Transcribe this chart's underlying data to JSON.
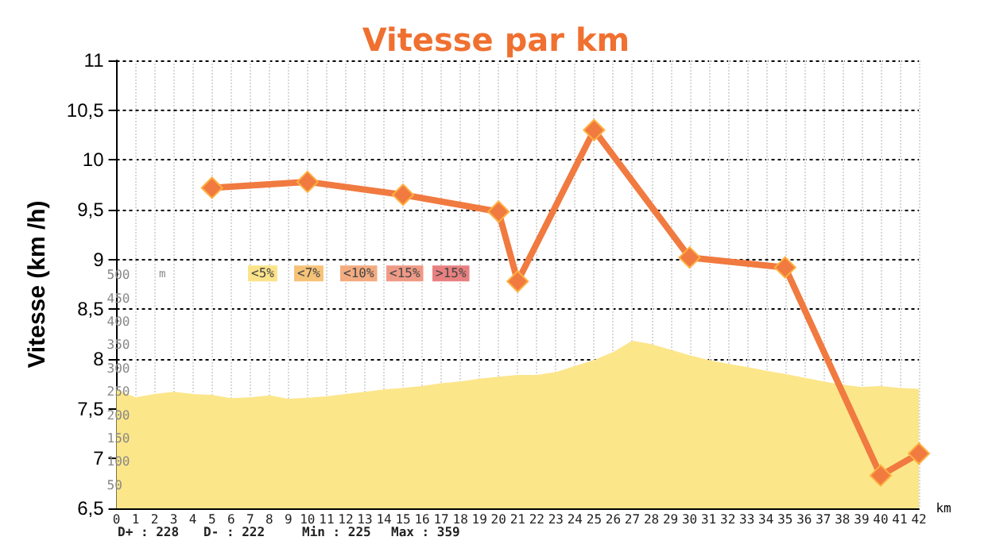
{
  "chart_data": {
    "type": "line",
    "title": "Vitesse par km",
    "xlabel": "km",
    "ylabel": "Vitesse (km /h)",
    "y2label": "m",
    "xlim": [
      0,
      42
    ],
    "xticks": [
      0,
      1,
      2,
      3,
      4,
      5,
      6,
      7,
      8,
      9,
      10,
      11,
      12,
      13,
      14,
      15,
      16,
      17,
      18,
      19,
      20,
      21,
      22,
      23,
      24,
      25,
      26,
      27,
      28,
      29,
      30,
      31,
      32,
      33,
      34,
      35,
      36,
      37,
      38,
      39,
      40,
      41,
      42
    ],
    "ylim": [
      6.5,
      11
    ],
    "yticks": [
      {
        "value": 6.5,
        "label": "6,5"
      },
      7,
      {
        "value": 7.5,
        "label": "7,5"
      },
      8,
      {
        "value": 8.5,
        "label": "8,5"
      },
      9,
      {
        "value": 9.5,
        "label": "9,5"
      },
      10,
      {
        "value": 10.5,
        "label": "10,5"
      },
      11
    ],
    "y2lim": [
      0,
      960
    ],
    "y2ticks": [
      50,
      100,
      150,
      200,
      250,
      300,
      350,
      400,
      450,
      500
    ],
    "grid": true,
    "marker": "diamond",
    "line_style": "solid",
    "series": [
      {
        "type": "area",
        "axis": "y2",
        "marker": "none",
        "color": "#fce68a",
        "x": [
          0,
          1,
          2,
          3,
          4,
          5,
          6,
          7,
          8,
          9,
          10,
          11,
          12,
          13,
          14,
          15,
          16,
          17,
          18,
          19,
          20,
          21,
          22,
          23,
          24,
          25,
          26,
          27,
          28,
          29,
          30,
          31,
          32,
          33,
          34,
          35,
          36,
          37,
          38,
          39,
          40,
          41,
          42
        ],
        "values": [
          255,
          238,
          245,
          250,
          245,
          243,
          236,
          238,
          242,
          235,
          237,
          240,
          245,
          250,
          255,
          258,
          262,
          268,
          272,
          278,
          282,
          286,
          286,
          292,
          305,
          318,
          335,
          359,
          352,
          340,
          328,
          318,
          310,
          303,
          295,
          288,
          280,
          272,
          265,
          260,
          262,
          258,
          256
        ]
      },
      {
        "color": "#f07a40",
        "x": [
          5,
          10,
          15,
          20,
          21,
          25,
          30,
          35,
          40,
          42
        ],
        "values": [
          9.72,
          9.78,
          9.65,
          9.48,
          8.78,
          10.3,
          9.02,
          8.92,
          6.83,
          7.05
        ]
      }
    ],
    "annotations": [
      "<5%",
      "<7%",
      "<10%",
      "<15%",
      ">15%",
      "D+ : 228",
      "D- : 222",
      "Min : 225",
      "Max : 359"
    ]
  }
}
